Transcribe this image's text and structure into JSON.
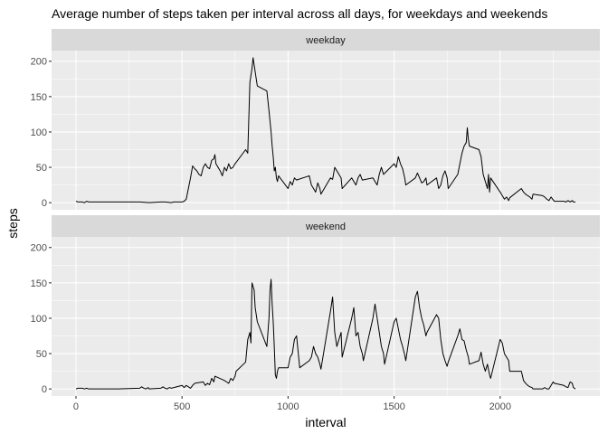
{
  "chart_data": {
    "type": "line",
    "title": "Average number of steps taken per interval across all days, for weekdays and weekends",
    "xlabel": "interval",
    "ylabel": "steps",
    "xlim": [
      -115,
      2470
    ],
    "ylim": [
      -10,
      215
    ],
    "x_ticks": [
      0,
      500,
      1000,
      1500,
      2000
    ],
    "x_tick_labels": [
      "0",
      "500",
      "1000",
      "1500",
      "2000"
    ],
    "y_ticks": [
      0,
      50,
      100,
      150,
      200
    ],
    "y_tick_labels": [
      "0",
      "50",
      "100",
      "150",
      "200"
    ],
    "grid": true,
    "facets": [
      {
        "label": "weekday",
        "points": [
          [
            0,
            2
          ],
          [
            10,
            1
          ],
          [
            20,
            1
          ],
          [
            30,
            1
          ],
          [
            40,
            0
          ],
          [
            50,
            2
          ],
          [
            60,
            1
          ],
          [
            100,
            1
          ],
          [
            200,
            1
          ],
          [
            300,
            1
          ],
          [
            345,
            0
          ],
          [
            400,
            1
          ],
          [
            420,
            1
          ],
          [
            450,
            0
          ],
          [
            460,
            1
          ],
          [
            480,
            1
          ],
          [
            500,
            1
          ],
          [
            510,
            2
          ],
          [
            520,
            5
          ],
          [
            530,
            20
          ],
          [
            540,
            35
          ],
          [
            550,
            52
          ],
          [
            560,
            48
          ],
          [
            570,
            45
          ],
          [
            580,
            40
          ],
          [
            590,
            38
          ],
          [
            600,
            50
          ],
          [
            610,
            55
          ],
          [
            620,
            50
          ],
          [
            630,
            48
          ],
          [
            640,
            60
          ],
          [
            650,
            62
          ],
          [
            655,
            68
          ],
          [
            660,
            55
          ],
          [
            670,
            50
          ],
          [
            680,
            45
          ],
          [
            690,
            38
          ],
          [
            700,
            50
          ],
          [
            710,
            45
          ],
          [
            720,
            55
          ],
          [
            730,
            48
          ],
          [
            740,
            50
          ],
          [
            750,
            55
          ],
          [
            800,
            75
          ],
          [
            810,
            70
          ],
          [
            820,
            170
          ],
          [
            825,
            180
          ],
          [
            830,
            190
          ],
          [
            835,
            205
          ],
          [
            840,
            195
          ],
          [
            845,
            185
          ],
          [
            850,
            175
          ],
          [
            855,
            165
          ],
          [
            900,
            158
          ],
          [
            910,
            130
          ],
          [
            920,
            100
          ],
          [
            925,
            80
          ],
          [
            930,
            65
          ],
          [
            935,
            45
          ],
          [
            940,
            50
          ],
          [
            945,
            35
          ],
          [
            950,
            30
          ],
          [
            955,
            38
          ],
          [
            1000,
            20
          ],
          [
            1010,
            30
          ],
          [
            1020,
            25
          ],
          [
            1030,
            35
          ],
          [
            1040,
            32
          ],
          [
            1100,
            38
          ],
          [
            1110,
            25
          ],
          [
            1120,
            20
          ],
          [
            1130,
            15
          ],
          [
            1140,
            28
          ],
          [
            1150,
            20
          ],
          [
            1155,
            12
          ],
          [
            1200,
            35
          ],
          [
            1210,
            33
          ],
          [
            1220,
            50
          ],
          [
            1230,
            45
          ],
          [
            1240,
            40
          ],
          [
            1250,
            35
          ],
          [
            1255,
            20
          ],
          [
            1300,
            35
          ],
          [
            1310,
            30
          ],
          [
            1320,
            25
          ],
          [
            1330,
            35
          ],
          [
            1340,
            40
          ],
          [
            1350,
            32
          ],
          [
            1400,
            35
          ],
          [
            1410,
            30
          ],
          [
            1420,
            25
          ],
          [
            1430,
            40
          ],
          [
            1440,
            50
          ],
          [
            1450,
            40
          ],
          [
            1500,
            55
          ],
          [
            1510,
            50
          ],
          [
            1520,
            65
          ],
          [
            1530,
            55
          ],
          [
            1540,
            48
          ],
          [
            1550,
            35
          ],
          [
            1555,
            25
          ],
          [
            1600,
            35
          ],
          [
            1610,
            42
          ],
          [
            1620,
            35
          ],
          [
            1630,
            28
          ],
          [
            1640,
            30
          ],
          [
            1650,
            35
          ],
          [
            1655,
            25
          ],
          [
            1700,
            35
          ],
          [
            1710,
            20
          ],
          [
            1720,
            25
          ],
          [
            1730,
            38
          ],
          [
            1740,
            45
          ],
          [
            1750,
            35
          ],
          [
            1755,
            20
          ],
          [
            1800,
            40
          ],
          [
            1810,
            55
          ],
          [
            1820,
            70
          ],
          [
            1830,
            80
          ],
          [
            1840,
            85
          ],
          [
            1845,
            106
          ],
          [
            1850,
            90
          ],
          [
            1855,
            80
          ],
          [
            1900,
            75
          ],
          [
            1910,
            65
          ],
          [
            1920,
            40
          ],
          [
            1930,
            30
          ],
          [
            1940,
            20
          ],
          [
            1945,
            40
          ],
          [
            1950,
            15
          ],
          [
            1955,
            35
          ],
          [
            2000,
            15
          ],
          [
            2010,
            10
          ],
          [
            2020,
            5
          ],
          [
            2030,
            8
          ],
          [
            2040,
            3
          ],
          [
            2045,
            7
          ],
          [
            2100,
            20
          ],
          [
            2110,
            15
          ],
          [
            2120,
            12
          ],
          [
            2130,
            10
          ],
          [
            2140,
            8
          ],
          [
            2150,
            5
          ],
          [
            2155,
            12
          ],
          [
            2200,
            10
          ],
          [
            2210,
            8
          ],
          [
            2220,
            5
          ],
          [
            2230,
            3
          ],
          [
            2240,
            8
          ],
          [
            2250,
            4
          ],
          [
            2255,
            2
          ],
          [
            2300,
            2
          ],
          [
            2310,
            1
          ],
          [
            2320,
            3
          ],
          [
            2330,
            1
          ],
          [
            2340,
            3
          ],
          [
            2345,
            1
          ],
          [
            2355,
            1
          ]
        ]
      },
      {
        "label": "weekend",
        "points": [
          [
            0,
            0
          ],
          [
            10,
            1
          ],
          [
            20,
            1
          ],
          [
            30,
            1
          ],
          [
            40,
            0
          ],
          [
            50,
            1
          ],
          [
            60,
            0
          ],
          [
            100,
            0
          ],
          [
            200,
            0
          ],
          [
            300,
            1
          ],
          [
            310,
            3
          ],
          [
            320,
            1
          ],
          [
            330,
            0
          ],
          [
            340,
            2
          ],
          [
            345,
            0
          ],
          [
            400,
            1
          ],
          [
            410,
            3
          ],
          [
            420,
            1
          ],
          [
            430,
            0
          ],
          [
            440,
            2
          ],
          [
            450,
            1
          ],
          [
            500,
            5
          ],
          [
            510,
            2
          ],
          [
            520,
            5
          ],
          [
            530,
            3
          ],
          [
            540,
            1
          ],
          [
            550,
            5
          ],
          [
            560,
            8
          ],
          [
            600,
            10
          ],
          [
            610,
            5
          ],
          [
            620,
            8
          ],
          [
            630,
            6
          ],
          [
            640,
            15
          ],
          [
            650,
            10
          ],
          [
            655,
            18
          ],
          [
            700,
            12
          ],
          [
            710,
            10
          ],
          [
            720,
            8
          ],
          [
            730,
            15
          ],
          [
            740,
            12
          ],
          [
            750,
            18
          ],
          [
            755,
            25
          ],
          [
            800,
            38
          ],
          [
            810,
            70
          ],
          [
            820,
            80
          ],
          [
            825,
            65
          ],
          [
            830,
            150
          ],
          [
            835,
            145
          ],
          [
            840,
            140
          ],
          [
            845,
            115
          ],
          [
            850,
            105
          ],
          [
            855,
            95
          ],
          [
            900,
            60
          ],
          [
            910,
            100
          ],
          [
            915,
            140
          ],
          [
            920,
            155
          ],
          [
            925,
            120
          ],
          [
            930,
            95
          ],
          [
            935,
            60
          ],
          [
            940,
            20
          ],
          [
            945,
            15
          ],
          [
            950,
            25
          ],
          [
            955,
            30
          ],
          [
            1000,
            30
          ],
          [
            1010,
            45
          ],
          [
            1020,
            50
          ],
          [
            1030,
            70
          ],
          [
            1040,
            75
          ],
          [
            1050,
            45
          ],
          [
            1055,
            30
          ],
          [
            1100,
            40
          ],
          [
            1110,
            45
          ],
          [
            1120,
            60
          ],
          [
            1130,
            50
          ],
          [
            1140,
            45
          ],
          [
            1150,
            35
          ],
          [
            1155,
            28
          ],
          [
            1200,
            110
          ],
          [
            1210,
            130
          ],
          [
            1220,
            80
          ],
          [
            1230,
            60
          ],
          [
            1240,
            70
          ],
          [
            1250,
            80
          ],
          [
            1255,
            45
          ],
          [
            1300,
            100
          ],
          [
            1310,
            115
          ],
          [
            1320,
            75
          ],
          [
            1330,
            80
          ],
          [
            1340,
            60
          ],
          [
            1350,
            50
          ],
          [
            1355,
            40
          ],
          [
            1400,
            100
          ],
          [
            1410,
            120
          ],
          [
            1420,
            100
          ],
          [
            1430,
            80
          ],
          [
            1440,
            60
          ],
          [
            1450,
            50
          ],
          [
            1455,
            35
          ],
          [
            1500,
            95
          ],
          [
            1510,
            100
          ],
          [
            1520,
            85
          ],
          [
            1530,
            70
          ],
          [
            1540,
            60
          ],
          [
            1550,
            48
          ],
          [
            1555,
            40
          ],
          [
            1600,
            130
          ],
          [
            1610,
            138
          ],
          [
            1620,
            115
          ],
          [
            1630,
            100
          ],
          [
            1640,
            90
          ],
          [
            1650,
            75
          ],
          [
            1655,
            80
          ],
          [
            1700,
            105
          ],
          [
            1710,
            100
          ],
          [
            1720,
            70
          ],
          [
            1730,
            50
          ],
          [
            1740,
            40
          ],
          [
            1750,
            32
          ],
          [
            1755,
            38
          ],
          [
            1800,
            75
          ],
          [
            1810,
            85
          ],
          [
            1820,
            70
          ],
          [
            1830,
            68
          ],
          [
            1840,
            55
          ],
          [
            1850,
            45
          ],
          [
            1855,
            35
          ],
          [
            1900,
            40
          ],
          [
            1910,
            52
          ],
          [
            1920,
            35
          ],
          [
            1930,
            25
          ],
          [
            1940,
            35
          ],
          [
            1950,
            20
          ],
          [
            1955,
            15
          ],
          [
            2000,
            70
          ],
          [
            2010,
            65
          ],
          [
            2020,
            50
          ],
          [
            2030,
            45
          ],
          [
            2040,
            40
          ],
          [
            2045,
            25
          ],
          [
            2100,
            25
          ],
          [
            2110,
            12
          ],
          [
            2120,
            8
          ],
          [
            2130,
            5
          ],
          [
            2140,
            3
          ],
          [
            2150,
            2
          ],
          [
            2155,
            0
          ],
          [
            2200,
            0
          ],
          [
            2210,
            2
          ],
          [
            2220,
            0
          ],
          [
            2230,
            0
          ],
          [
            2240,
            5
          ],
          [
            2250,
            10
          ],
          [
            2255,
            8
          ],
          [
            2300,
            5
          ],
          [
            2310,
            3
          ],
          [
            2320,
            2
          ],
          [
            2330,
            10
          ],
          [
            2340,
            8
          ],
          [
            2345,
            2
          ],
          [
            2355,
            0
          ]
        ]
      }
    ]
  }
}
